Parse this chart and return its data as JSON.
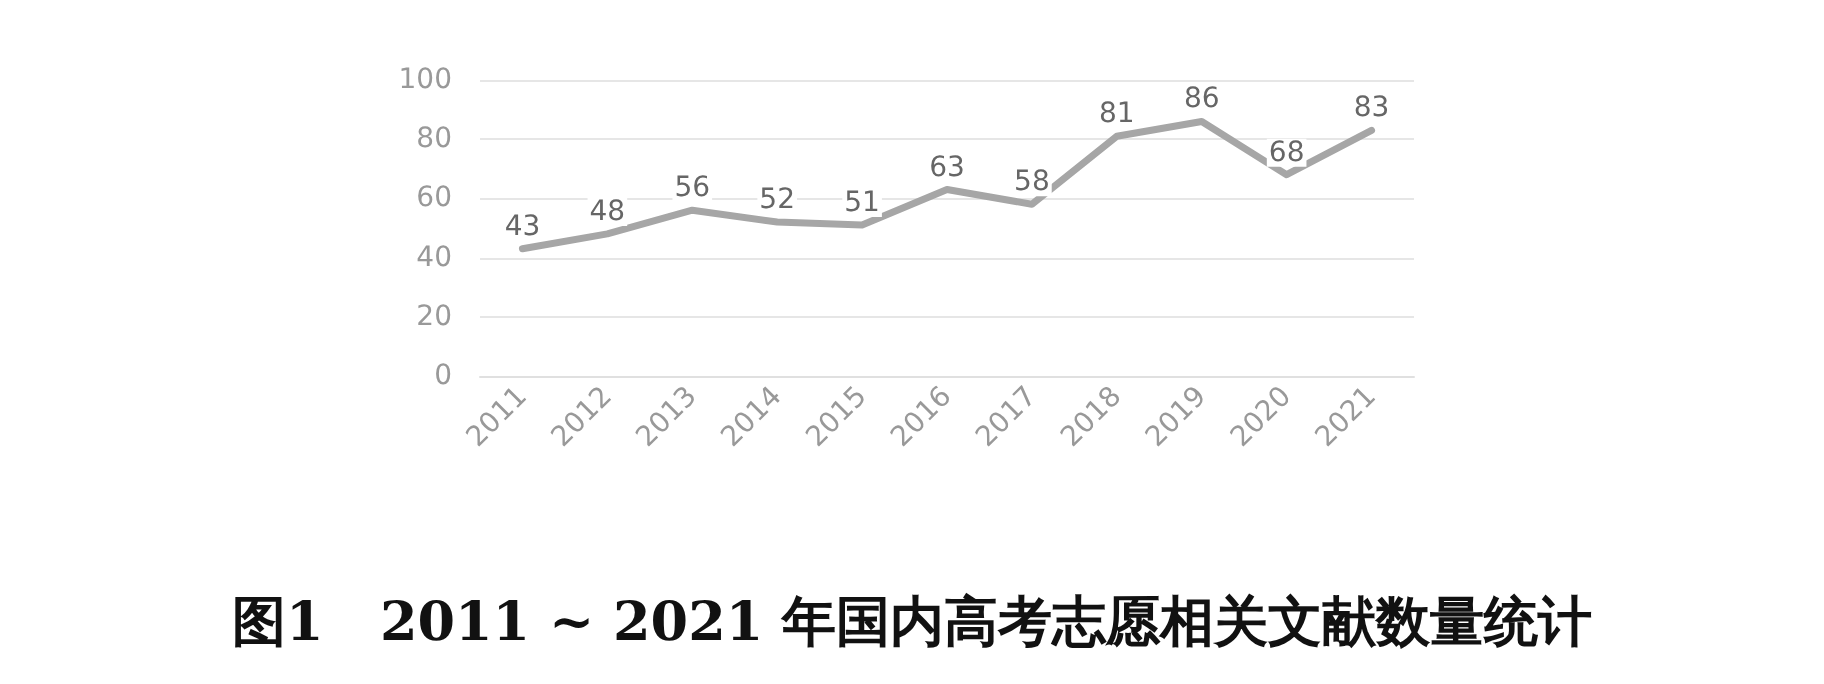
{
  "chart_data": {
    "type": "line",
    "title": "图1   2011 ~ 2021 年国内高考志愿相关文献数量统计",
    "categories": [
      "2011",
      "2012",
      "2013",
      "2014",
      "2015",
      "2016",
      "2017",
      "2018",
      "2019",
      "2020",
      "2021"
    ],
    "series": [
      {
        "color": "#a6a6a6",
        "values": [
          43,
          48,
          56,
          52,
          51,
          63,
          58,
          81,
          86,
          68,
          83
        ]
      }
    ],
    "ylim": [
      0,
      100
    ],
    "yticks": [
      0,
      20,
      40,
      60,
      80,
      100
    ],
    "grid": "y",
    "data_labels": true,
    "marker": "none",
    "line_style": "solid"
  }
}
